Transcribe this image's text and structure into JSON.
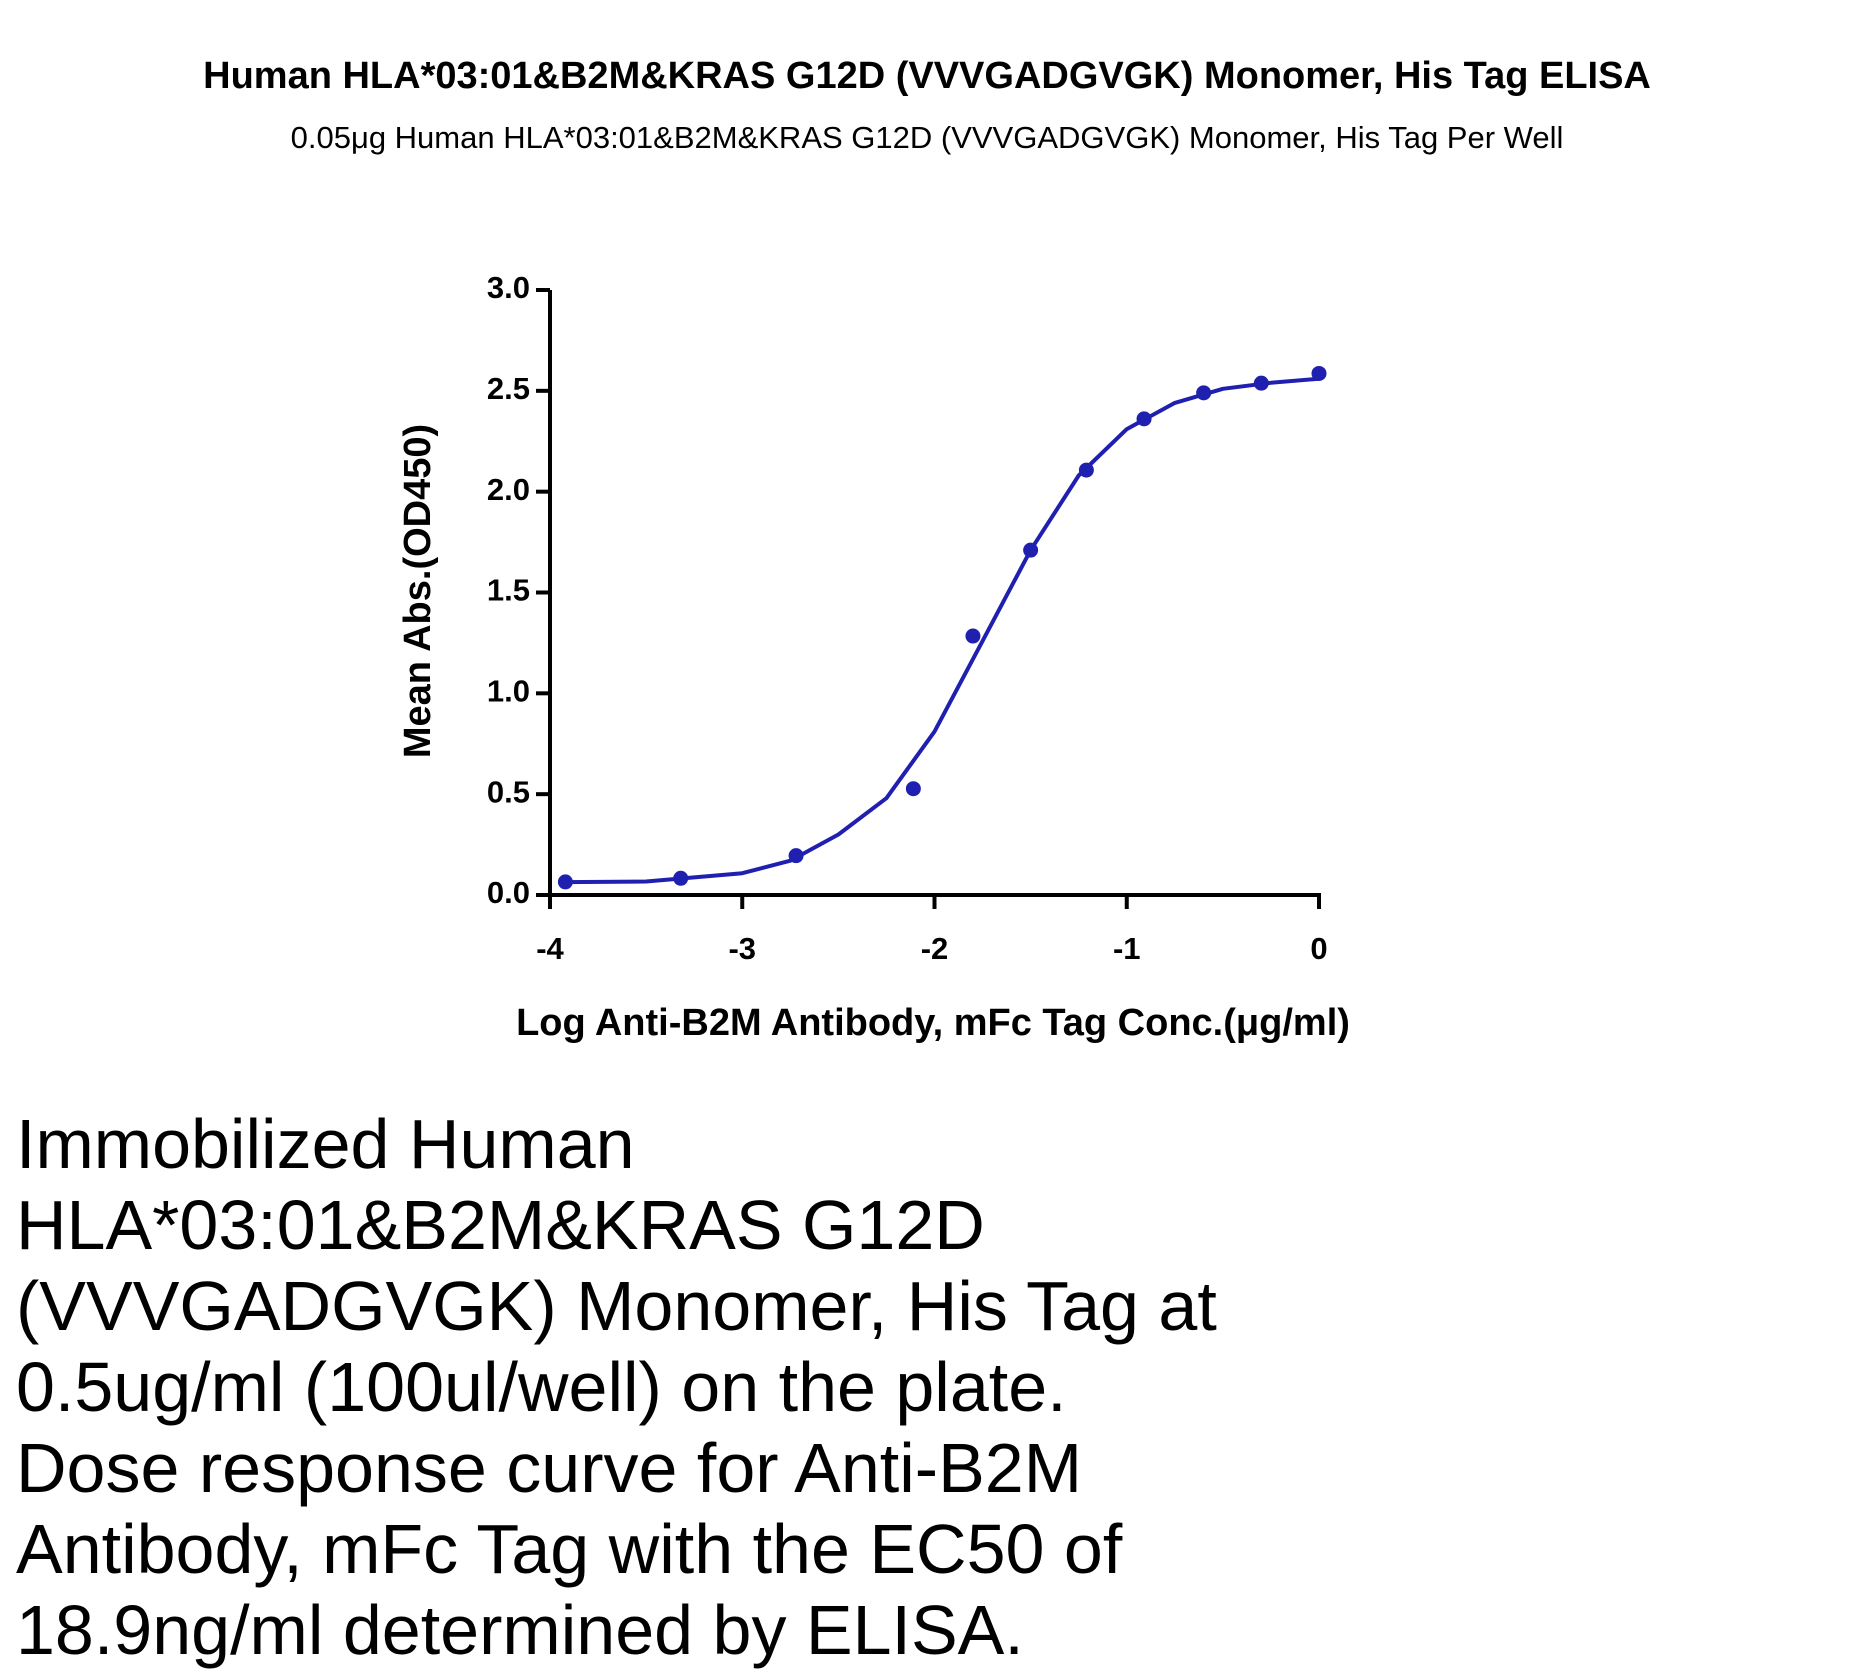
{
  "chart_data": {
    "type": "scatter",
    "title": "Human HLA*03:01&B2M&KRAS G12D (VVVGADGVGK) Monomer, His Tag ELISA",
    "subtitle": "0.05μg  Human HLA*03:01&B2M&KRAS G12D (VVVGADGVGK) Monomer, His Tag Per Well",
    "x_label": "Log Anti-B2M Antibody, mFc Tag Conc.(μg/ml)",
    "y_label": "Mean Abs.(OD450)",
    "color": "#2020b0",
    "x": [
      -3.92,
      -3.32,
      -2.72,
      -2.11,
      -1.8,
      -1.5,
      -1.21,
      -0.91,
      -0.6,
      -0.3,
      0
    ],
    "values": [
      0.065,
      0.083,
      0.195,
      0.527,
      1.284,
      1.71,
      2.107,
      2.361,
      2.49,
      2.538,
      2.586
    ],
    "fit": {
      "x": [
        -3.92,
        -3.5,
        -3.0,
        -2.75,
        -2.5,
        -2.25,
        -2.0,
        -1.75,
        -1.5,
        -1.25,
        -1.0,
        -0.75,
        -0.5,
        -0.25,
        0
      ],
      "values": [
        0.064,
        0.067,
        0.108,
        0.17,
        0.3,
        0.48,
        0.81,
        1.26,
        1.71,
        2.08,
        2.31,
        2.44,
        2.51,
        2.54,
        2.56
      ]
    },
    "xlim": [
      -4,
      0
    ],
    "xticks": [
      -4,
      -3,
      -2,
      -1,
      0
    ],
    "ylim": [
      0,
      3
    ],
    "yticks": [
      {
        "value": 0,
        "label": "0.0"
      },
      0.5,
      {
        "value": 1,
        "label": "1.0"
      },
      1.5,
      {
        "value": 2,
        "label": "2.0"
      },
      2.5,
      {
        "value": 3,
        "label": "3.0"
      }
    ]
  },
  "note_lines": [
    "Immobilized Human",
    "HLA*03:01&B2M&KRAS G12D",
    "(VVVGADGVGK) Monomer, His Tag at",
    "0.5ug/ml (100ul/well) on the plate.",
    "Dose response curve for Anti-B2M",
    "Antibody, mFc Tag with the EC50 of",
    "18.9ng/ml determined by ELISA."
  ]
}
